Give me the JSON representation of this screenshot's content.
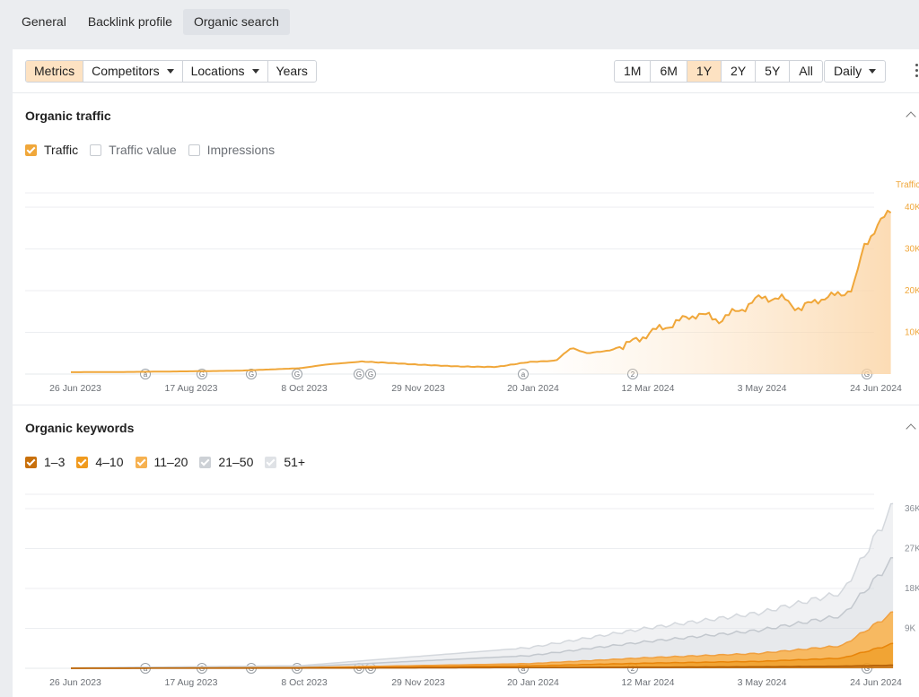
{
  "nav": {
    "tabs": [
      {
        "label": "General"
      },
      {
        "label": "Backlink profile"
      },
      {
        "label": "Organic search"
      }
    ]
  },
  "toolbar": {
    "metrics": "Metrics",
    "competitors": "Competitors",
    "locations": "Locations",
    "years": "Years",
    "ranges": [
      "1M",
      "6M",
      "1Y",
      "2Y",
      "5Y",
      "All"
    ],
    "active_range": "1Y",
    "interval": "Daily"
  },
  "organic_traffic": {
    "title": "Organic traffic",
    "checks": [
      {
        "label": "Traffic",
        "checked": true
      },
      {
        "label": "Traffic value",
        "checked": false
      },
      {
        "label": "Impressions",
        "checked": false
      }
    ],
    "axis_title": "Traffic"
  },
  "organic_keywords": {
    "title": "Organic keywords",
    "checks": [
      {
        "label": "1–3",
        "checked": true
      },
      {
        "label": "4–10",
        "checked": true
      },
      {
        "label": "11–20",
        "checked": true
      },
      {
        "label": "21–50",
        "checked": true
      },
      {
        "label": "51+",
        "checked": true
      }
    ]
  },
  "colors": {
    "accent": "#f0a73a",
    "band_1_3": "#c8700b",
    "band_4_10": "#f09a1e",
    "band_11_20": "#f6b150",
    "band_21_50": "#d3d7dc",
    "band_51_plus": "#e3e6ea"
  },
  "annotation_markers": [
    "a",
    "G",
    "G",
    "G",
    "G",
    "G",
    "a",
    "2",
    "G"
  ],
  "chart_data": [
    {
      "type": "area",
      "title": "Organic traffic",
      "x": [
        "26 Jun 2023",
        "17 Aug 2023",
        "8 Oct 2023",
        "29 Nov 2023",
        "20 Jan 2024",
        "12 Mar 2024",
        "3 May 2024",
        "24 Jun 2024"
      ],
      "ytick_labels": [
        "10K",
        "20K",
        "30K",
        "40K"
      ],
      "ylim": [
        0,
        40000
      ],
      "grid": true,
      "series": [
        {
          "name": "Traffic",
          "points": [
            [
              "2023-06-26",
              450
            ],
            [
              "2023-07-20",
              500
            ],
            [
              "2023-08-17",
              650
            ],
            [
              "2023-09-10",
              800
            ],
            [
              "2023-10-08",
              1400
            ],
            [
              "2023-10-20",
              2300
            ],
            [
              "2023-11-05",
              3000
            ],
            [
              "2023-11-20",
              2600
            ],
            [
              "2023-11-29",
              2300
            ],
            [
              "2023-12-20",
              1800
            ],
            [
              "2024-01-05",
              1700
            ],
            [
              "2024-01-20",
              2900
            ],
            [
              "2024-02-01",
              3200
            ],
            [
              "2024-02-08",
              6300
            ],
            [
              "2024-02-15",
              5000
            ],
            [
              "2024-02-25",
              5600
            ],
            [
              "2024-03-05",
              7200
            ],
            [
              "2024-03-15",
              10000
            ],
            [
              "2024-03-25",
              12000
            ],
            [
              "2024-04-05",
              14500
            ],
            [
              "2024-04-15",
              13000
            ],
            [
              "2024-04-25",
              15500
            ],
            [
              "2024-05-01",
              17500
            ],
            [
              "2024-05-05",
              18500
            ],
            [
              "2024-05-15",
              17800
            ],
            [
              "2024-05-22",
              15500
            ],
            [
              "2024-05-30",
              18000
            ],
            [
              "2024-06-05",
              18500
            ],
            [
              "2024-06-10",
              19500
            ],
            [
              "2024-06-15",
              20500
            ],
            [
              "2024-06-20",
              31000
            ],
            [
              "2024-06-26",
              35500
            ],
            [
              "2024-07-03",
              40000
            ]
          ]
        }
      ]
    },
    {
      "type": "area",
      "title": "Organic keywords",
      "x": [
        "26 Jun 2023",
        "17 Aug 2023",
        "8 Oct 2023",
        "29 Nov 2023",
        "20 Jan 2024",
        "12 Mar 2024",
        "3 May 2024",
        "24 Jun 2024"
      ],
      "ytick_labels": [
        "9K",
        "18K",
        "27K",
        "36K"
      ],
      "ylim": [
        0,
        36000
      ],
      "grid": true,
      "stacked": true,
      "series": [
        {
          "name": "1–3",
          "points": [
            [
              "2023-06-26",
              0
            ],
            [
              "2023-10-08",
              30
            ],
            [
              "2024-01-20",
              150
            ],
            [
              "2024-03-12",
              250
            ],
            [
              "2024-05-03",
              350
            ],
            [
              "2024-06-10",
              500
            ],
            [
              "2024-07-03",
              700
            ]
          ]
        },
        {
          "name": "4–10",
          "points": [
            [
              "2023-06-26",
              10
            ],
            [
              "2023-10-08",
              60
            ],
            [
              "2024-01-20",
              400
            ],
            [
              "2024-03-12",
              900
            ],
            [
              "2024-05-03",
              1200
            ],
            [
              "2024-06-10",
              1800
            ],
            [
              "2024-07-03",
              4800
            ]
          ]
        },
        {
          "name": "11–20",
          "points": [
            [
              "2023-06-26",
              10
            ],
            [
              "2023-10-08",
              70
            ],
            [
              "2024-01-20",
              500
            ],
            [
              "2024-03-12",
              1200
            ],
            [
              "2024-05-03",
              1800
            ],
            [
              "2024-06-10",
              2800
            ],
            [
              "2024-07-03",
              7000
            ]
          ]
        },
        {
          "name": "21–50",
          "points": [
            [
              "2023-06-26",
              30
            ],
            [
              "2023-10-08",
              180
            ],
            [
              "2024-01-20",
              1800
            ],
            [
              "2024-03-12",
              3600
            ],
            [
              "2024-05-03",
              5200
            ],
            [
              "2024-06-10",
              6800
            ],
            [
              "2024-07-03",
              12000
            ]
          ]
        },
        {
          "name": "51+",
          "points": [
            [
              "2023-06-26",
              40
            ],
            [
              "2023-10-08",
              250
            ],
            [
              "2024-01-20",
              1800
            ],
            [
              "2024-03-12",
              3000
            ],
            [
              "2024-05-03",
              3900
            ],
            [
              "2024-06-10",
              5200
            ],
            [
              "2024-07-03",
              12000
            ]
          ]
        }
      ]
    }
  ]
}
